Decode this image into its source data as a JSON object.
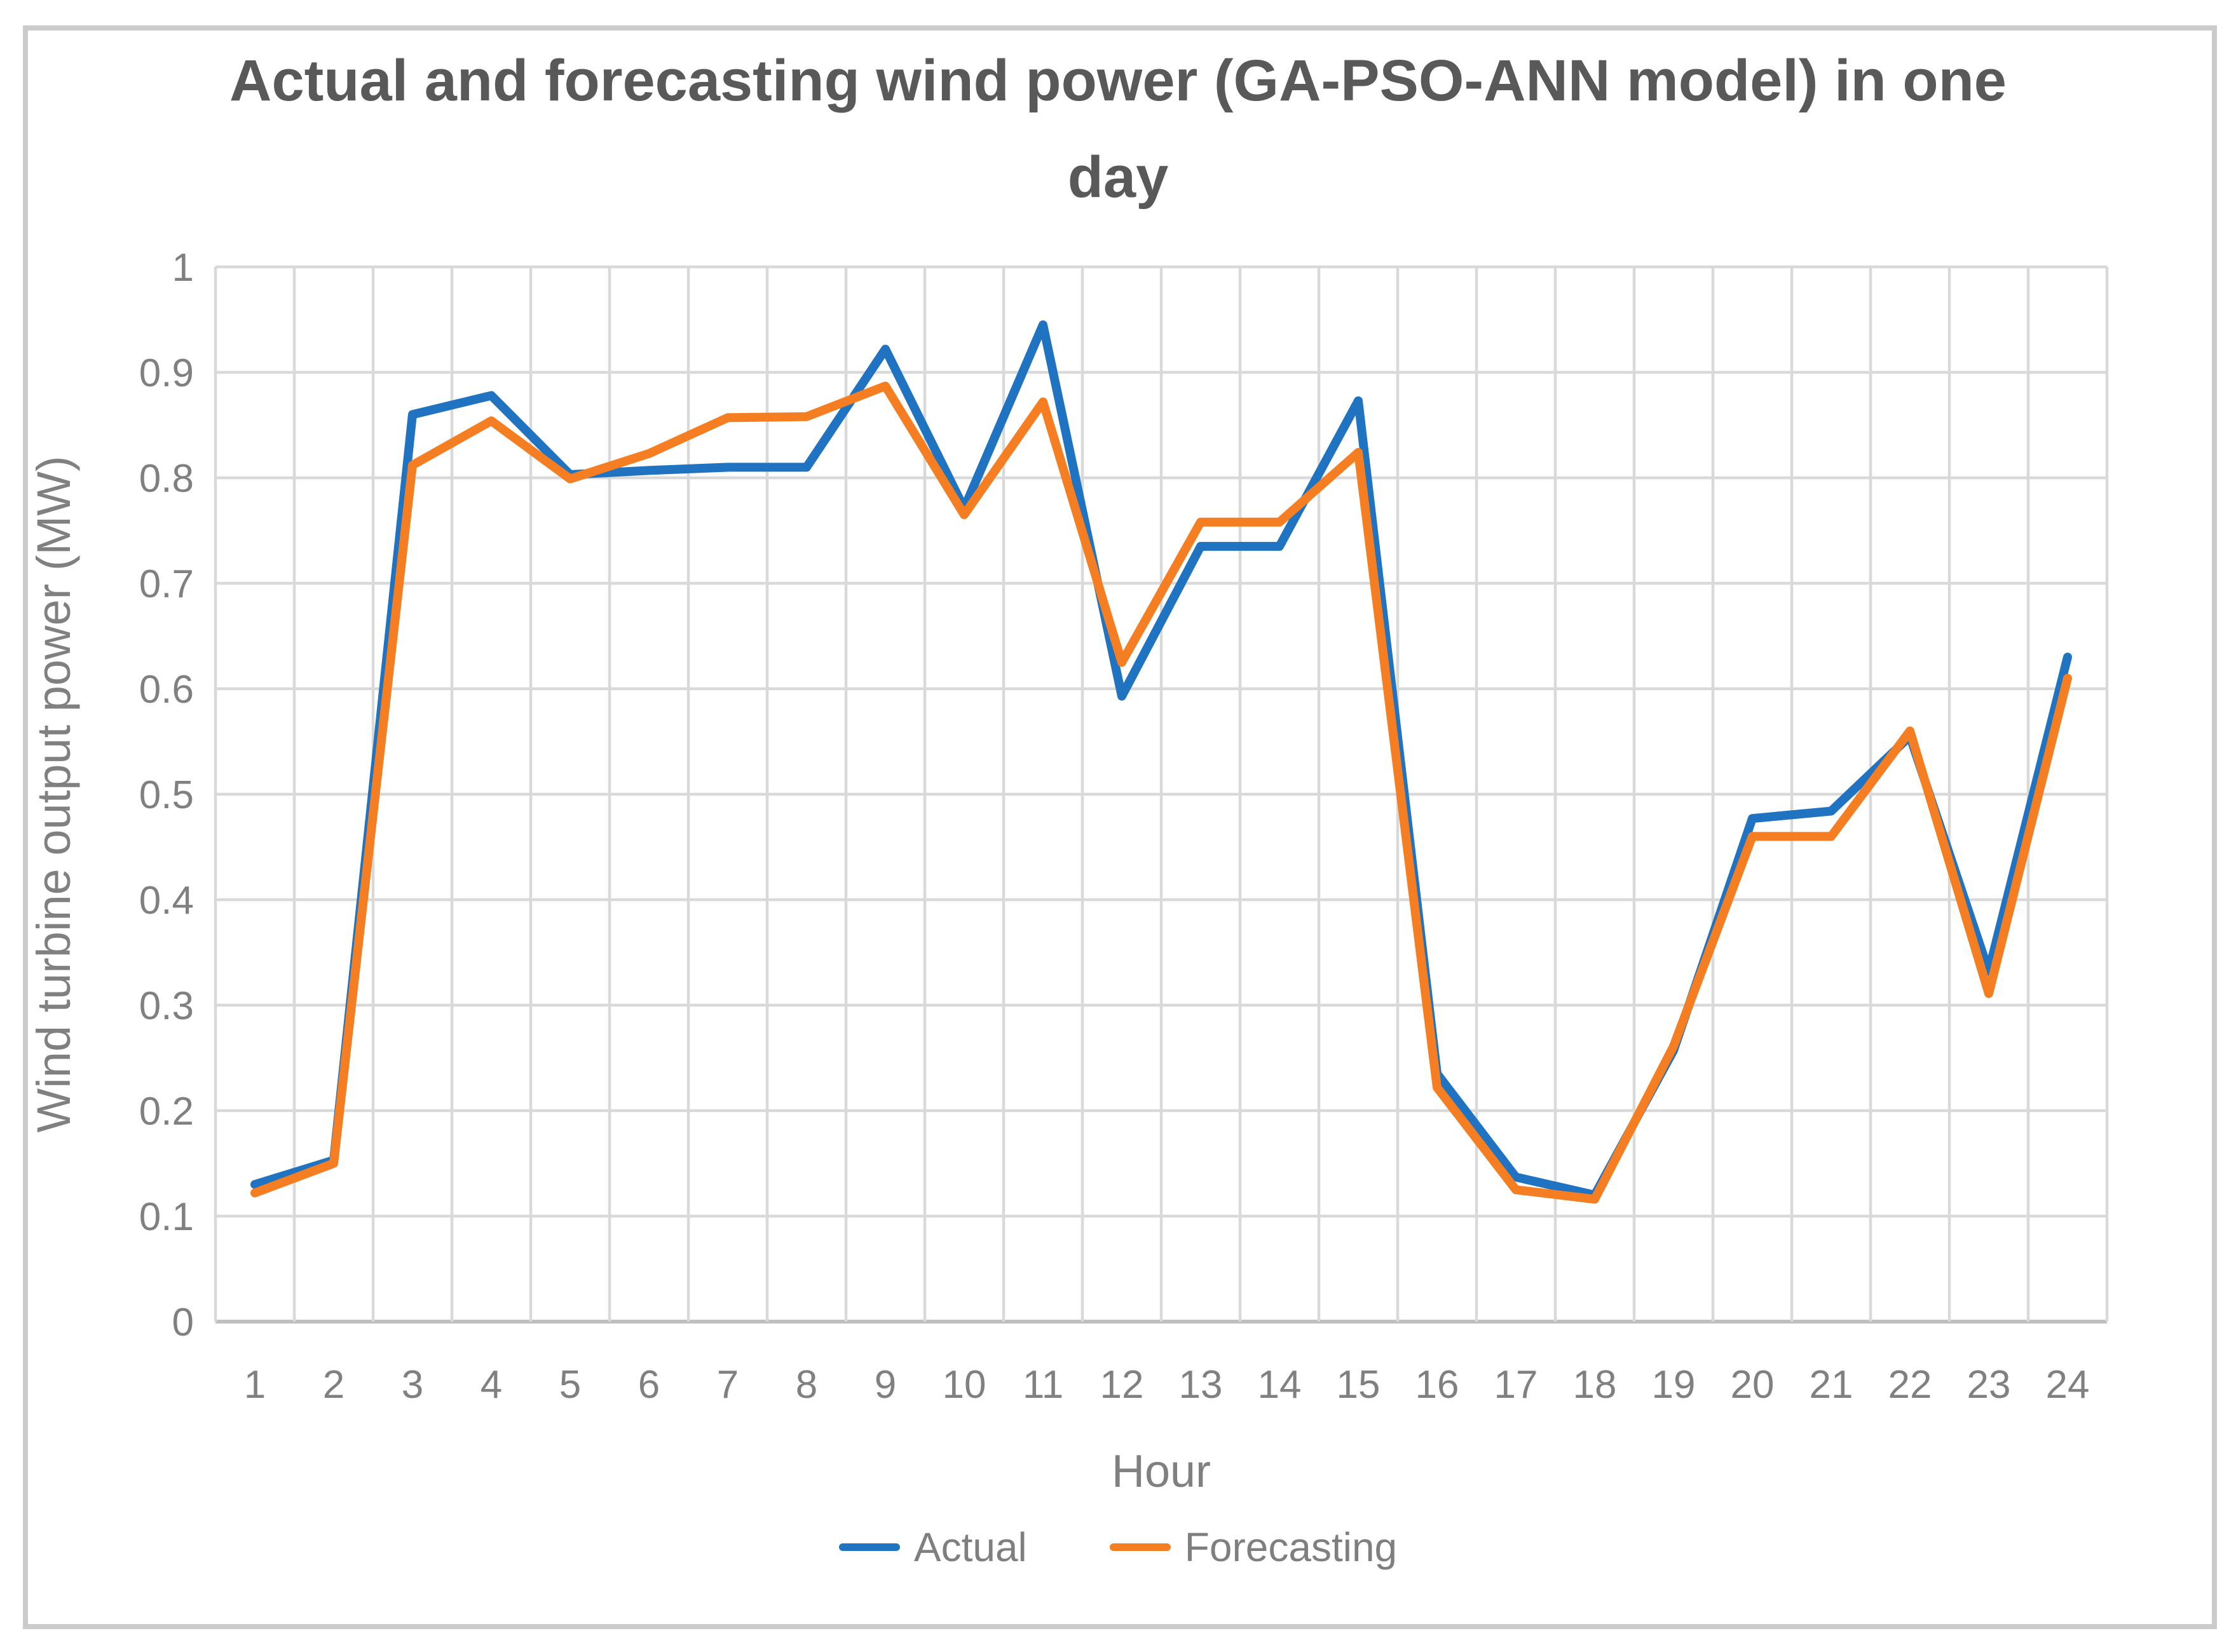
{
  "title_line1": "Actual and forecasting wind power (GA-PSO-ANN model) in one",
  "title_line2": "day",
  "chart_data": {
    "type": "line",
    "title": "Actual and forecasting wind power (GA-PSO-ANN model) in one day",
    "xlabel": "Hour",
    "ylabel": "Wind turbine output power (MW)",
    "ylim": [
      0,
      1
    ],
    "y_tick_labels": [
      "0",
      "0.1",
      "0.2",
      "0.3",
      "0.4",
      "0.5",
      "0.6",
      "0.7",
      "0.8",
      "0.9",
      "1"
    ],
    "categories": [
      1,
      2,
      3,
      4,
      5,
      6,
      7,
      8,
      9,
      10,
      11,
      12,
      13,
      14,
      15,
      16,
      17,
      18,
      19,
      20,
      21,
      22,
      23,
      24
    ],
    "grid": true,
    "legend_position": "bottom",
    "grid_color": "#d9d9d9",
    "axis_line_color": "#bfbfbf",
    "tick_label_color": "#808080",
    "series": [
      {
        "name": "Actual",
        "color": "#1f73c0",
        "values": [
          0.13,
          0.153,
          0.86,
          0.878,
          0.803,
          0.807,
          0.81,
          0.81,
          0.922,
          0.771,
          0.945,
          0.593,
          0.735,
          0.735,
          0.873,
          0.235,
          0.137,
          0.12,
          0.257,
          0.477,
          0.484,
          0.555,
          0.332,
          0.63
        ]
      },
      {
        "name": "Forecasting",
        "color": "#f57e22",
        "values": [
          0.122,
          0.15,
          0.812,
          0.854,
          0.799,
          0.823,
          0.857,
          0.858,
          0.887,
          0.765,
          0.872,
          0.625,
          0.758,
          0.758,
          0.824,
          0.222,
          0.125,
          0.116,
          0.261,
          0.46,
          0.46,
          0.56,
          0.311,
          0.61
        ]
      }
    ]
  }
}
